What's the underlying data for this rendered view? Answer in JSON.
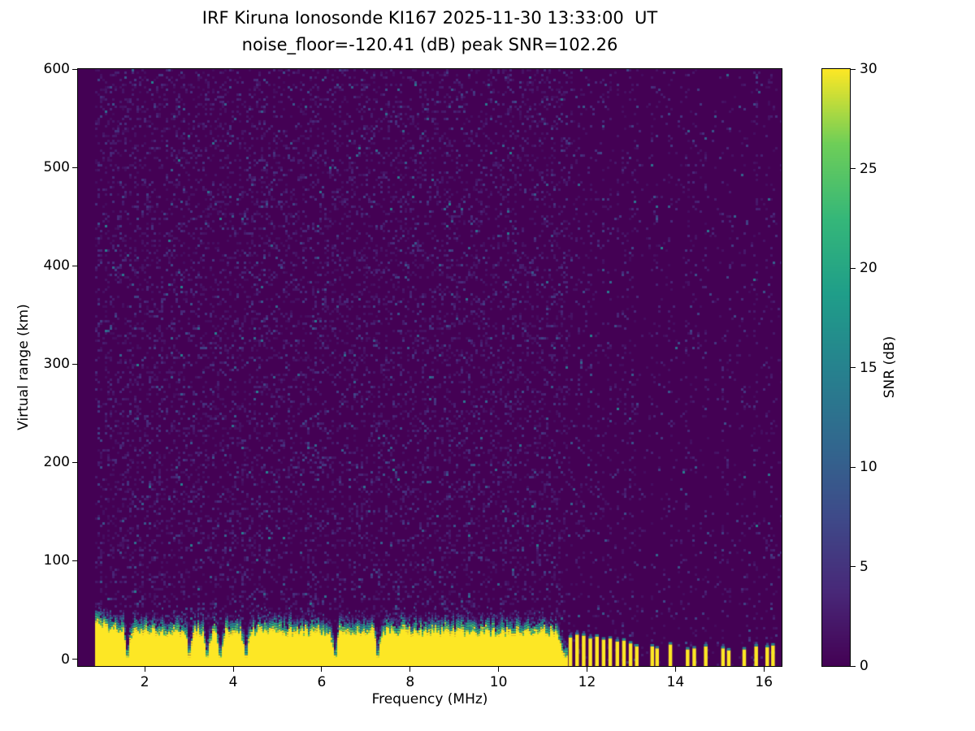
{
  "chart_data": {
    "type": "heatmap",
    "title": "IRF Kiruna Ionosonde KI167 2025-11-30 13:33:00  UT",
    "subtitle": "noise_floor=-120.41 (dB) peak SNR=102.26",
    "station": "KI167",
    "timestamp_ut": "2025-11-30 13:33:00",
    "noise_floor_db": -120.41,
    "peak_snr_db": 102.26,
    "xlabel": "Frequency (MHz)",
    "ylabel": "Virtual range (km)",
    "xlim": [
      0.49,
      16.4
    ],
    "ylim": [
      -7,
      600
    ],
    "x_ticks": [
      2,
      4,
      6,
      8,
      10,
      12,
      14,
      16
    ],
    "y_ticks": [
      0,
      100,
      200,
      300,
      400,
      500,
      600
    ],
    "colormap": "viridis",
    "colorbar": {
      "label": "SNR (dB)",
      "min": 0,
      "max": 30,
      "ticks": [
        0,
        5,
        10,
        15,
        20,
        25,
        30
      ]
    },
    "ground_echo_band": {
      "freq_start_mhz": 0.88,
      "freq_end_mhz": 11.55,
      "solid_top_km_mean": 28,
      "fringe_top_km_mean": 36,
      "left_edge_boost_below_mhz": 1.5,
      "notch_freqs_mhz": [
        1.62,
        3.02,
        3.42,
        3.72,
        4.28,
        6.3,
        7.28
      ]
    },
    "interference_stripes": [
      {
        "f": 11.62,
        "h": 22
      },
      {
        "f": 11.77,
        "h": 25
      },
      {
        "f": 11.92,
        "h": 24
      },
      {
        "f": 12.07,
        "h": 21
      },
      {
        "f": 12.22,
        "h": 23
      },
      {
        "f": 12.37,
        "h": 20
      },
      {
        "f": 12.52,
        "h": 21
      },
      {
        "f": 12.68,
        "h": 18
      },
      {
        "f": 12.83,
        "h": 19
      },
      {
        "f": 12.98,
        "h": 16
      },
      {
        "f": 13.12,
        "h": 13
      },
      {
        "f": 13.47,
        "h": 13
      },
      {
        "f": 13.58,
        "h": 11
      },
      {
        "f": 13.88,
        "h": 15
      },
      {
        "f": 14.27,
        "h": 10
      },
      {
        "f": 14.42,
        "h": 11
      },
      {
        "f": 14.68,
        "h": 13
      },
      {
        "f": 15.07,
        "h": 11
      },
      {
        "f": 15.2,
        "h": 9
      },
      {
        "f": 15.55,
        "h": 10
      },
      {
        "f": 15.82,
        "h": 13
      },
      {
        "f": 16.07,
        "h": 12
      },
      {
        "f": 16.2,
        "h": 14
      }
    ],
    "background_noise": {
      "speckle_snr_db_typical": [
        1,
        5
      ],
      "speckle_snr_db_max": 15,
      "density_below_11p5mhz": 0.2,
      "density_above_11p5mhz": 0.045,
      "density_on_stripe_columns": 0.12
    },
    "colors": {
      "background_low": "#440154",
      "peak_high": "#fde725"
    }
  }
}
